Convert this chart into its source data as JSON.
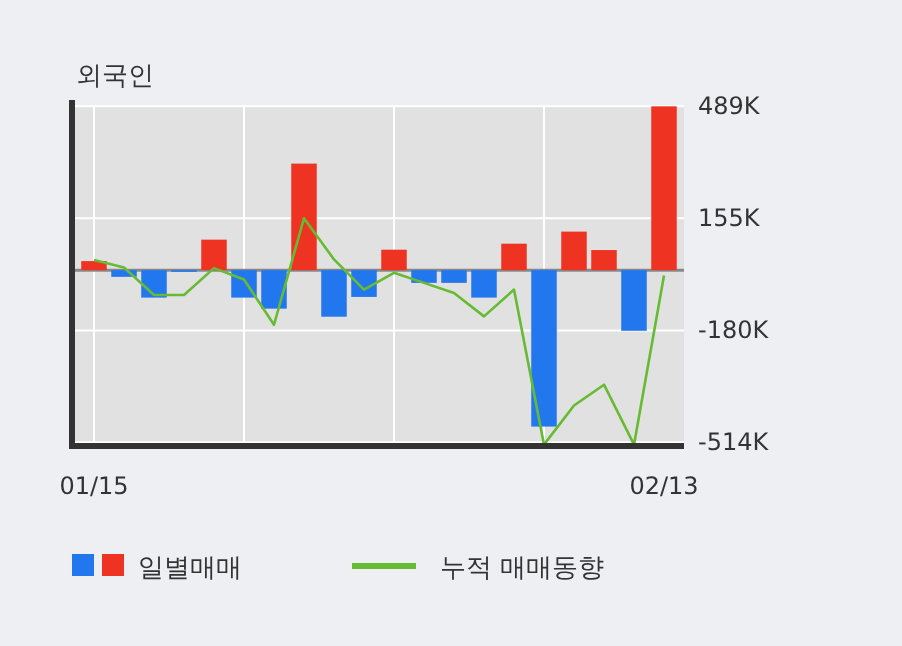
{
  "chart_data": {
    "type": "bar",
    "title": "외국인",
    "categories": [
      "01/15",
      null,
      null,
      null,
      null,
      null,
      null,
      null,
      null,
      null,
      null,
      null,
      null,
      null,
      null,
      null,
      null,
      null,
      null,
      "02/13"
    ],
    "series": [
      {
        "name": "일별매매",
        "colors": [
          "#ee3322",
          "#2277ee",
          "#2277ee",
          "#2277ee",
          "#ee3322",
          "#2277ee",
          "#2277ee",
          "#ee3322",
          "#2277ee",
          "#2277ee",
          "#ee3322",
          "#2277ee",
          "#2277ee",
          "#2277ee",
          "#ee3322",
          "#2277ee",
          "#ee3322",
          "#ee3322",
          "#2277ee",
          "#ee3322"
        ],
        "values": [
          27,
          -20,
          -82,
          -5,
          91,
          -82,
          -115,
          318,
          -139,
          -80,
          61,
          -38,
          -38,
          -82,
          79,
          -467,
          115,
          60,
          -181,
          489
        ]
      },
      {
        "name": "누적 매매동향",
        "type": "line",
        "color": "#66bb33",
        "values": [
          30,
          8,
          -74,
          -74,
          6,
          -28,
          -163,
          155,
          32,
          -58,
          -8,
          -38,
          -68,
          -138,
          -58,
          -521,
          -404,
          -342,
          -521,
          -16
        ]
      }
    ],
    "ylim": [
      -525,
      490
    ],
    "yticks": [
      {
        "value": 489,
        "label": "489K"
      },
      {
        "value": 155,
        "label": "155K"
      },
      {
        "value": -180,
        "label": "-180K"
      },
      {
        "value": -514,
        "label": "-514K"
      }
    ],
    "grid": true,
    "legend": "bottom"
  }
}
